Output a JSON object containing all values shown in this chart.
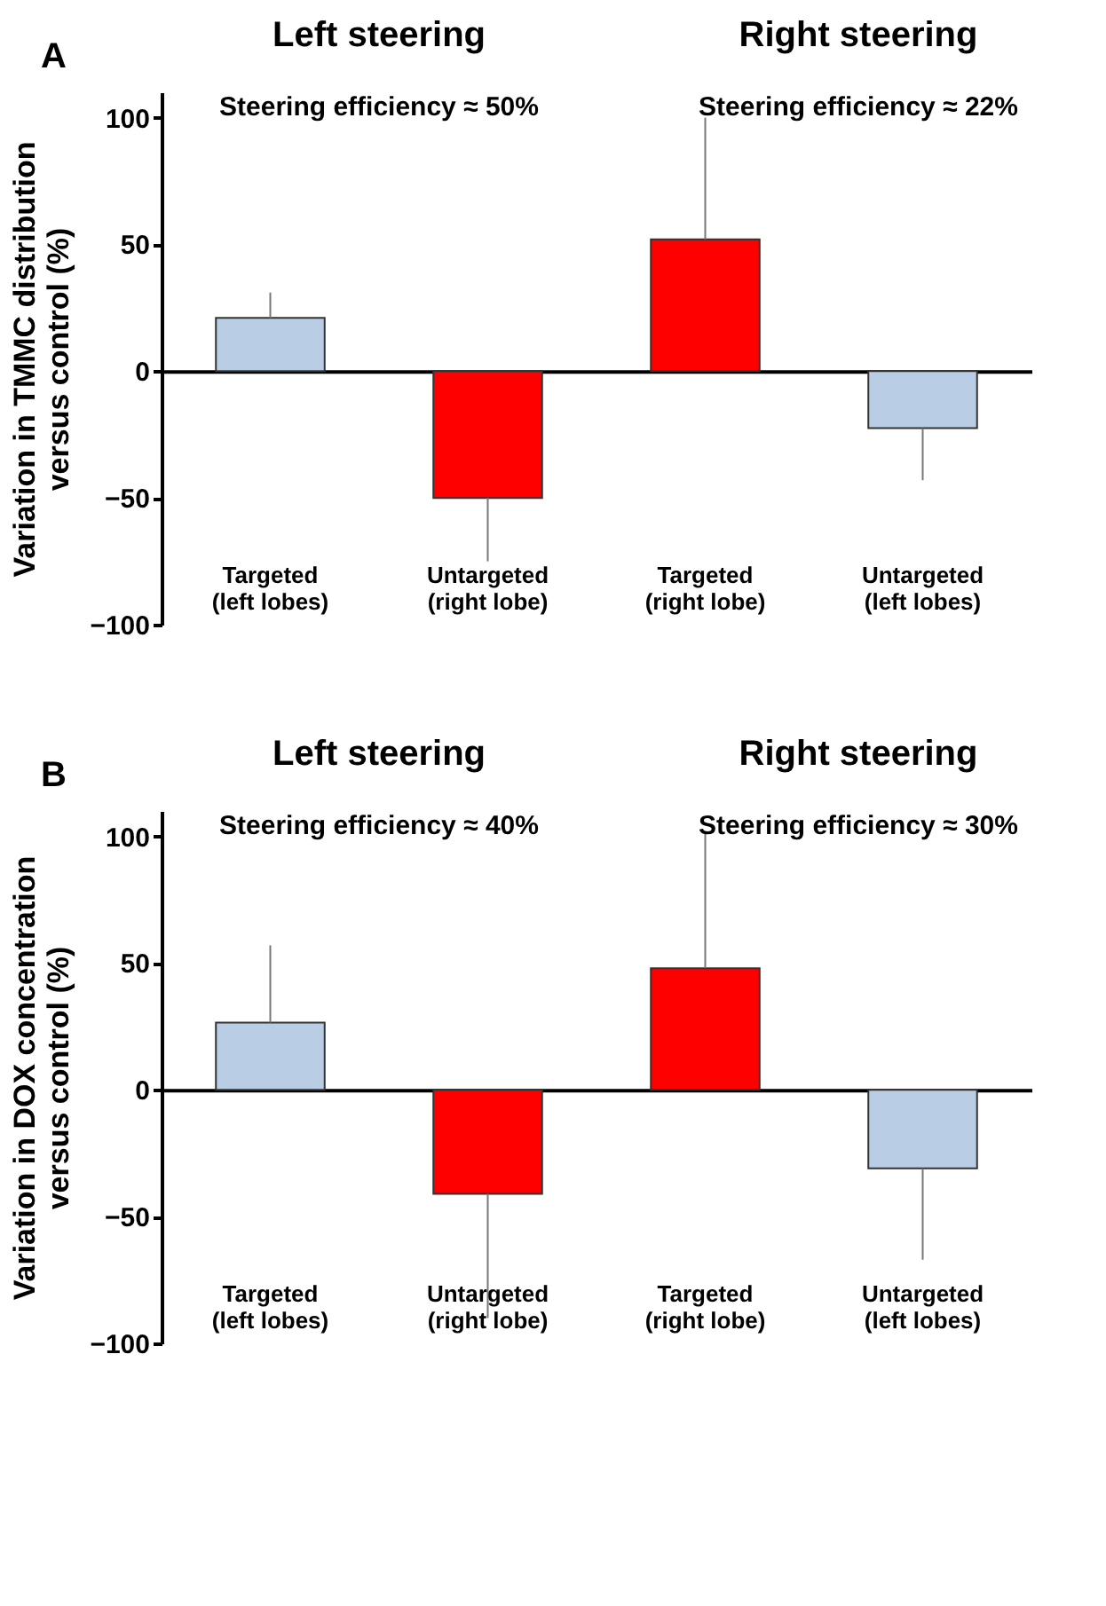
{
  "chart_data": [
    {
      "type": "bar",
      "title": "A",
      "ylabel": "Variation in TMMC distribution\nversus control (%)",
      "categories": [
        "Targeted\n(left lobes)",
        "Untargeted\n(right lobe)",
        "Targeted\n(right lobe)",
        "Untargeted\n(left lobes)"
      ],
      "values": [
        21,
        -50,
        52,
        -22.5
      ],
      "colors": [
        "#b9cde5",
        "#ff0000",
        "#ff0000",
        "#b9cde5"
      ],
      "errors": [
        [
          21,
          31
        ],
        [
          -75,
          -50
        ],
        [
          52,
          100
        ],
        [
          -43,
          -22.5
        ]
      ],
      "annotations": [
        "Left steering",
        "Right steering",
        "Steering efficiency ≈ 50%",
        "Steering efficiency ≈ 22%"
      ],
      "ylim": [
        -100,
        110
      ],
      "yticks": [
        -100,
        -50,
        0,
        50,
        100
      ]
    },
    {
      "type": "bar",
      "title": "B",
      "ylabel": "Variation in DOX concentration\nversus control (%)",
      "categories": [
        "Targeted\n(left lobes)",
        "Untargeted\n(right lobe)",
        "Targeted\n(right lobe)",
        "Untargeted\n(left lobes)"
      ],
      "values": [
        26.5,
        -41,
        48,
        -31
      ],
      "colors": [
        "#b9cde5",
        "#ff0000",
        "#ff0000",
        "#b9cde5"
      ],
      "errors": [
        [
          26.5,
          57
        ],
        [
          -90,
          -41
        ],
        [
          48,
          102
        ],
        [
          -67,
          -31
        ]
      ],
      "annotations": [
        "Left steering",
        "Right steering",
        "Steering efficiency ≈ 40%",
        "Steering efficiency ≈ 30%"
      ],
      "ylim": [
        -100,
        110
      ],
      "yticks": [
        -100,
        -50,
        0,
        50,
        100
      ]
    }
  ]
}
